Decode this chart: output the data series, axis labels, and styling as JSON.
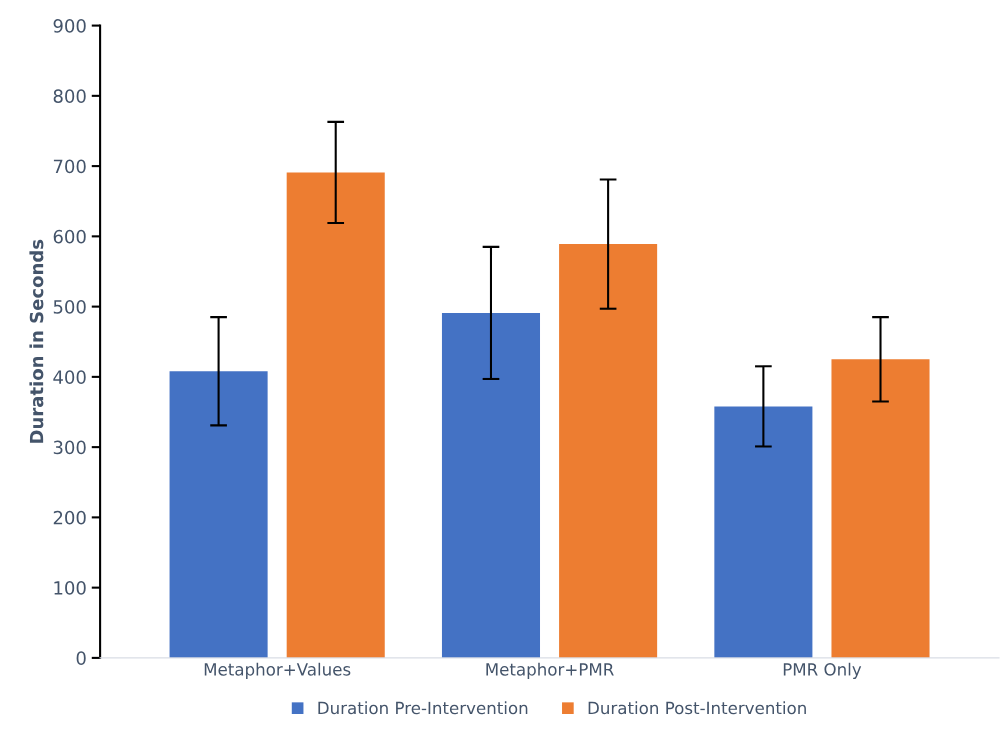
{
  "chart_data": {
    "type": "bar",
    "ylabel": "Duration in Seconds",
    "categories": [
      "Metaphor+Values",
      "Metaphor+PMR",
      "PMR Only"
    ],
    "series": [
      {
        "name": "Duration Pre-Intervention",
        "color": "#4472c4",
        "values": [
          408,
          491,
          358
        ],
        "errors": [
          77,
          94,
          57
        ]
      },
      {
        "name": "Duration Post-Intervention",
        "color": "#ed7d31",
        "values": [
          691,
          589,
          425
        ],
        "errors": [
          72,
          92,
          60
        ]
      }
    ],
    "ylim": [
      0,
      900
    ],
    "yticks": [
      0,
      100,
      200,
      300,
      400,
      500,
      600,
      700,
      800,
      900
    ],
    "grid": false,
    "legend": "bottom"
  }
}
